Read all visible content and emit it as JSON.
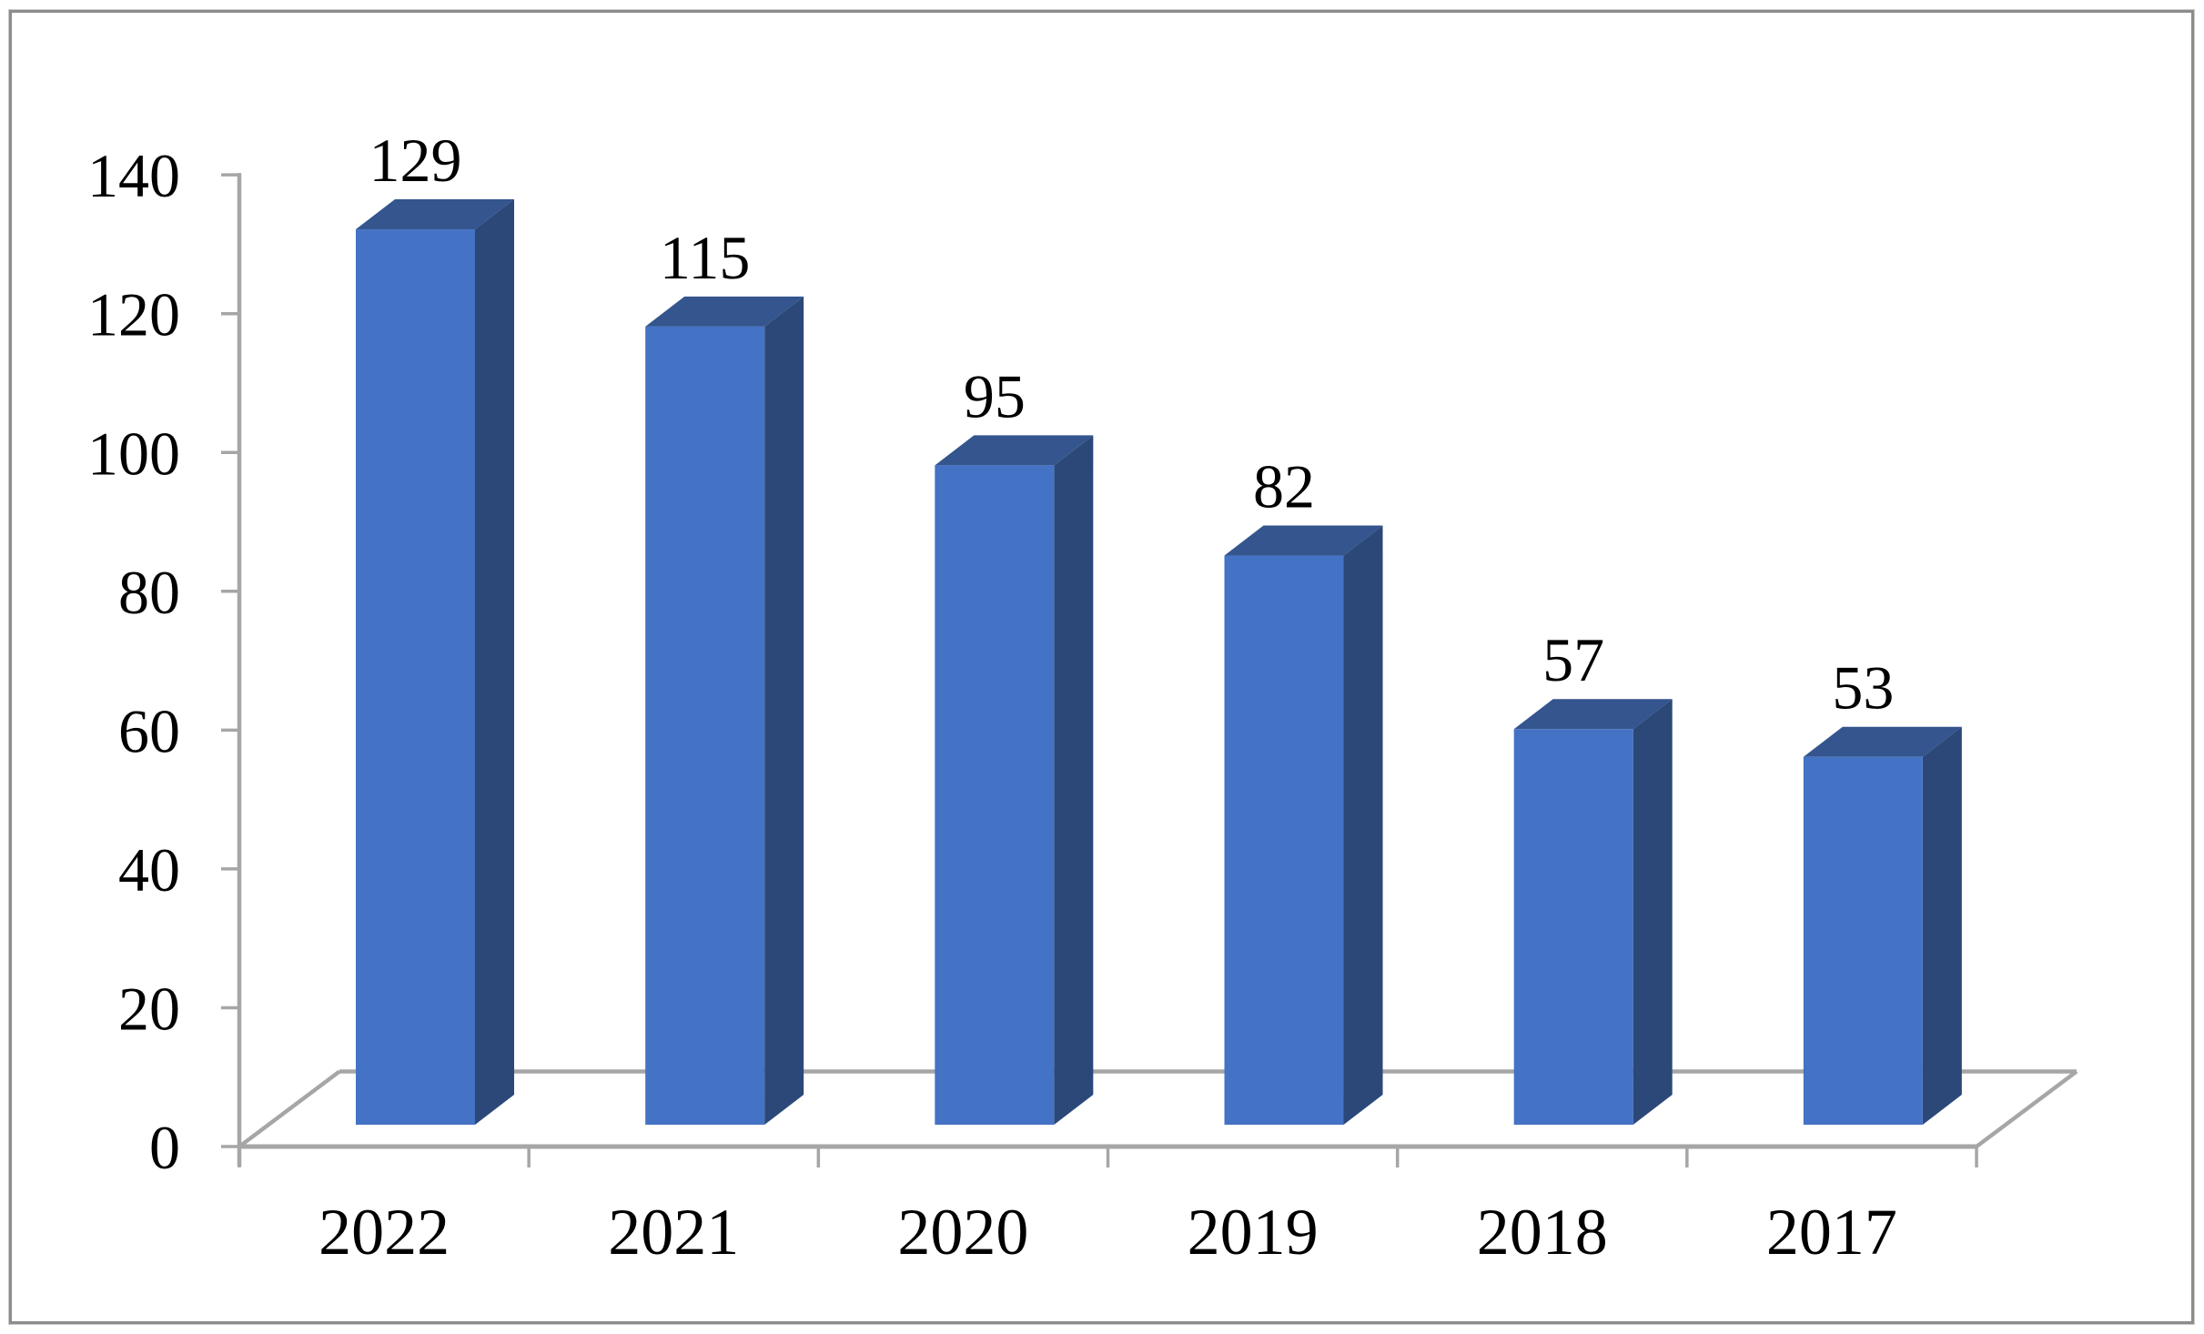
{
  "figure": {
    "background": "#ffffff",
    "border_color": "#8c8c8c"
  },
  "chart_data": {
    "type": "bar",
    "style": "3d-column",
    "title": "",
    "xlabel": "",
    "ylabel": "",
    "categories": [
      "2022",
      "2021",
      "2020",
      "2019",
      "2018",
      "2017"
    ],
    "values": [
      129,
      115,
      95,
      82,
      57,
      53
    ],
    "bar_labels": [
      "129",
      "115",
      "95",
      "82",
      "57",
      "53"
    ],
    "ylim": [
      0,
      140
    ],
    "ytick_step": 20,
    "yticks": [
      "0",
      "20",
      "40",
      "60",
      "80",
      "100",
      "120",
      "140"
    ],
    "grid": false,
    "legend_position": "none",
    "colors": {
      "bar_front": "#4472C4",
      "bar_top": "#34558D",
      "bar_side": "#2B4879",
      "axis": "#A6A6A6",
      "text": "#000000"
    }
  }
}
